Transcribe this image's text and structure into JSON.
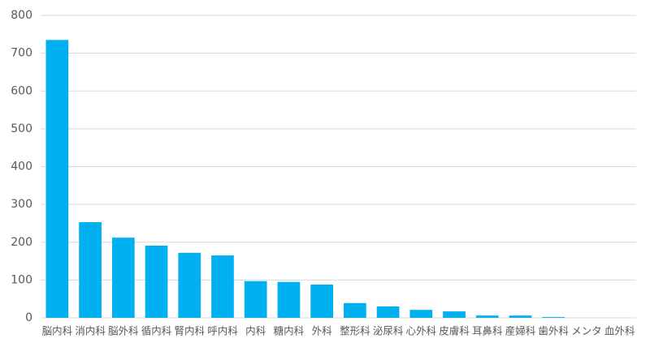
{
  "chart_data": {
    "type": "bar",
    "categories": [
      "脳内科",
      "消内科",
      "脳外科",
      "循内科",
      "腎内科",
      "呼内科",
      "内科",
      "糖内科",
      "外科",
      "整形科",
      "泌尿科",
      "心外科",
      "皮膚科",
      "耳鼻科",
      "産婦科",
      "歯外科",
      "メンタ",
      "血外科"
    ],
    "values": [
      735,
      253,
      212,
      191,
      172,
      165,
      97,
      95,
      88,
      39,
      30,
      21,
      17,
      6,
      6,
      2,
      0,
      0
    ],
    "color": "#00b0f0",
    "ylim": [
      0,
      800
    ],
    "yticks": [
      0,
      100,
      200,
      300,
      400,
      500,
      600,
      700,
      800
    ],
    "grid": true
  }
}
